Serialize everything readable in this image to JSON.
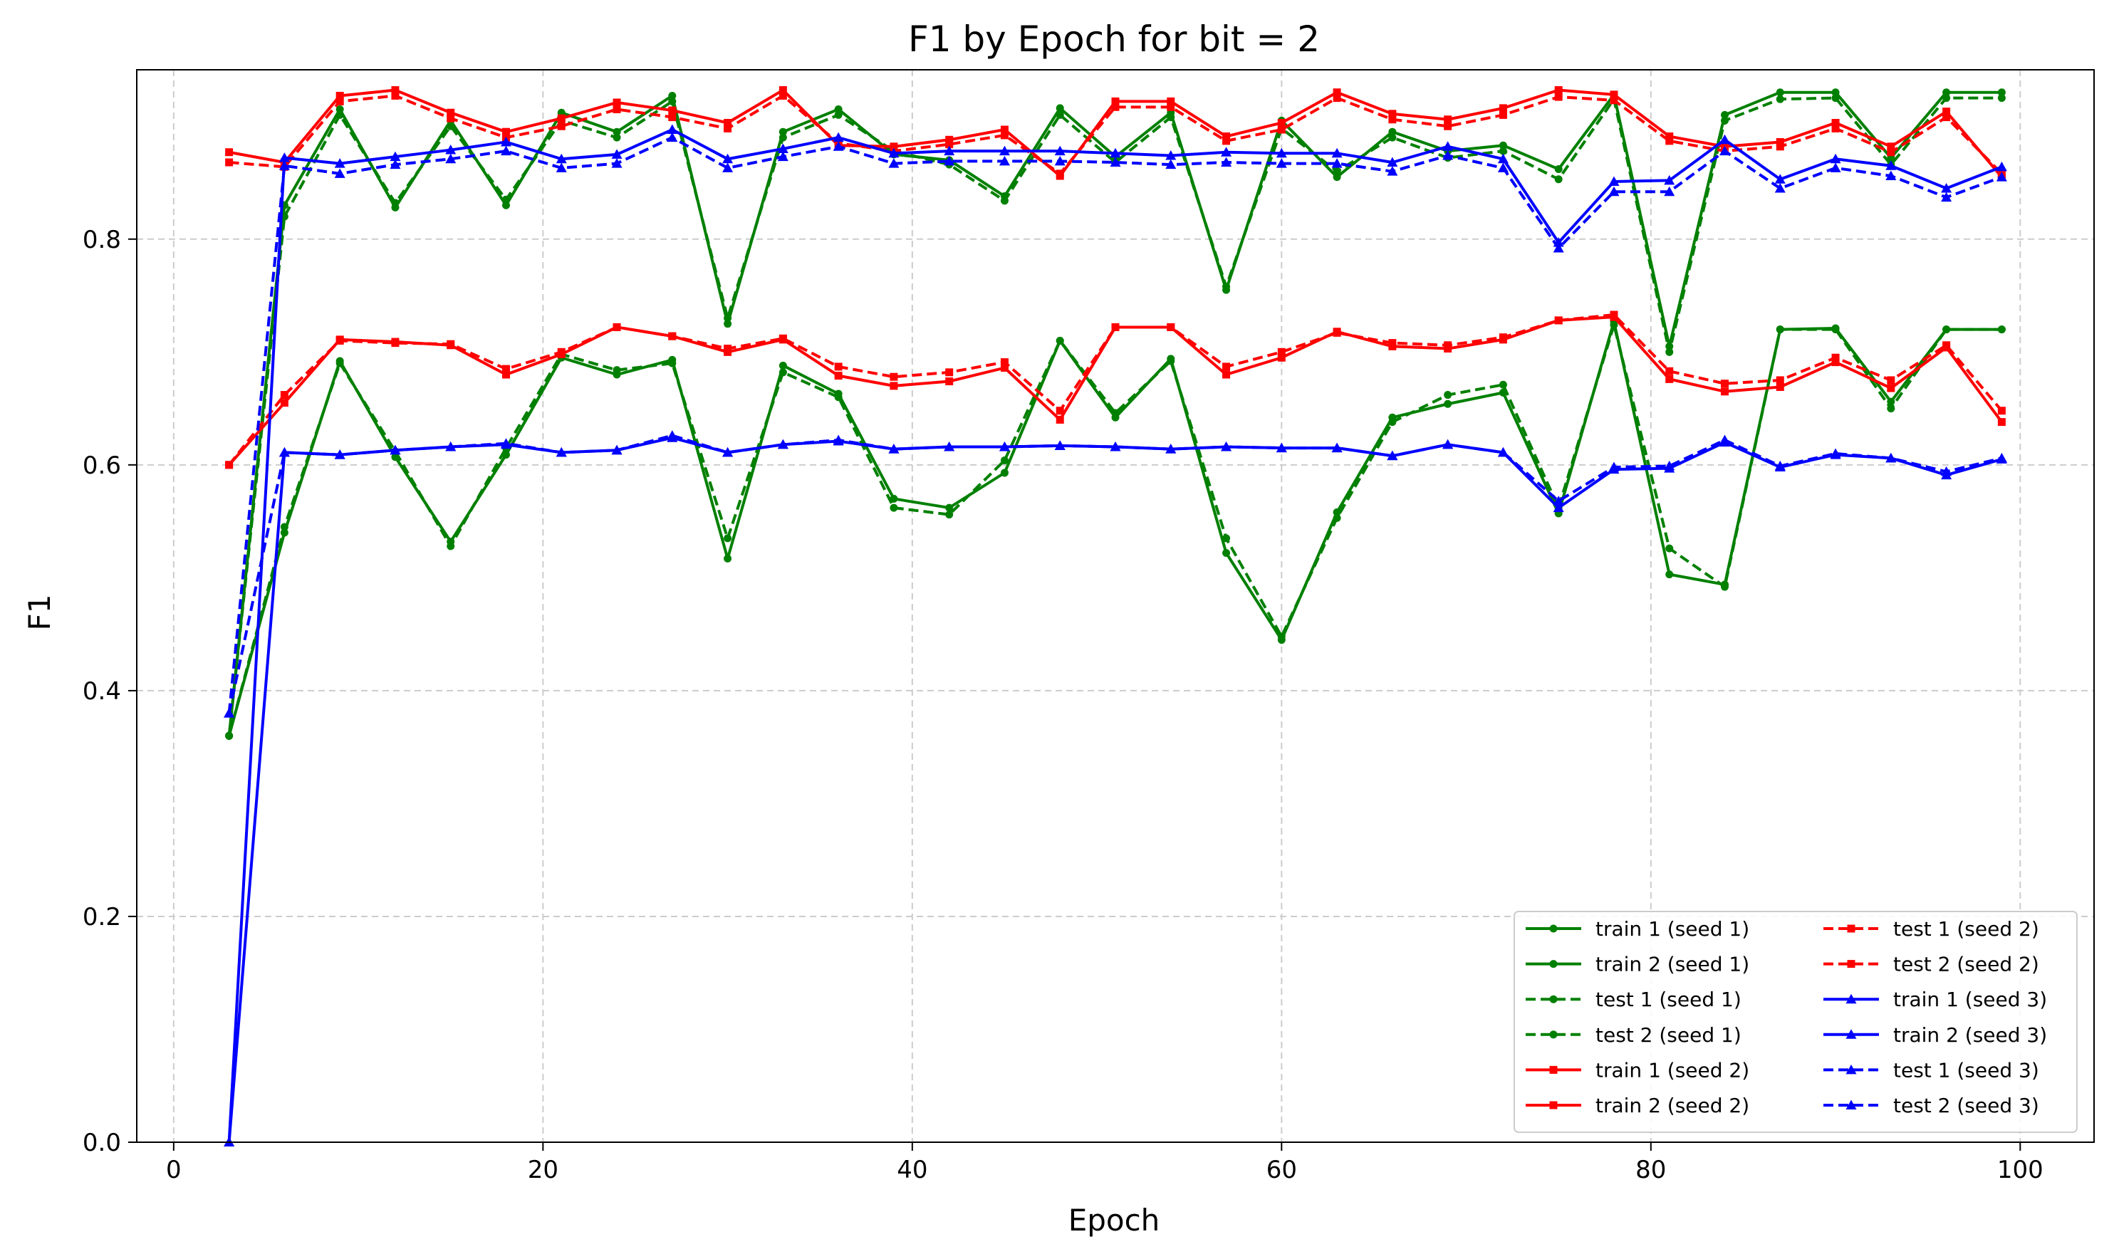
{
  "chart_data": {
    "type": "line",
    "title": "F1 by Epoch for bit = 2",
    "xlabel": "Epoch",
    "ylabel": "F1",
    "xlim": [
      -2,
      104
    ],
    "ylim": [
      0.0,
      0.95
    ],
    "x_ticks": [
      0,
      20,
      40,
      60,
      80,
      100
    ],
    "y_ticks": [
      0.0,
      0.2,
      0.4,
      0.6,
      0.8
    ],
    "x_tick_labels": [
      "0",
      "20",
      "40",
      "60",
      "80",
      "100"
    ],
    "y_tick_labels": [
      "0.0",
      "0.2",
      "0.4",
      "0.6",
      "0.8"
    ],
    "grid": true,
    "legend_position": "bottom-right",
    "legend_columns": 2,
    "x": [
      3,
      6,
      9,
      12,
      15,
      18,
      21,
      24,
      27,
      30,
      33,
      36,
      39,
      42,
      45,
      48,
      51,
      54,
      57,
      60,
      63,
      66,
      69,
      72,
      75,
      78,
      81,
      84,
      87,
      90,
      93,
      96,
      99
    ],
    "series": [
      {
        "name": "train 1 (seed 1)",
        "color": "#008000",
        "dash": "solid",
        "marker": "circle",
        "values": [
          0.36,
          0.83,
          0.915,
          0.828,
          0.905,
          0.83,
          0.912,
          0.895,
          0.927,
          0.725,
          0.895,
          0.915,
          0.875,
          0.87,
          0.838,
          0.916,
          0.873,
          0.912,
          0.755,
          0.905,
          0.855,
          0.895,
          0.878,
          0.883,
          0.862,
          0.928,
          0.705,
          0.91,
          0.93,
          0.93,
          0.872,
          0.93,
          0.93
        ]
      },
      {
        "name": "train 2 (seed 1)",
        "color": "#008000",
        "dash": "solid",
        "marker": "circle",
        "values": [
          0.36,
          0.54,
          0.692,
          0.607,
          0.532,
          0.609,
          0.695,
          0.68,
          0.693,
          0.517,
          0.688,
          0.663,
          0.57,
          0.562,
          0.593,
          0.71,
          0.642,
          0.694,
          0.522,
          0.445,
          0.558,
          0.642,
          0.654,
          0.664,
          0.557,
          0.727,
          0.503,
          0.494,
          0.72,
          0.721,
          0.656,
          0.72,
          0.72
        ]
      },
      {
        "name": "test 1 (seed 1)",
        "color": "#008000",
        "dash": "dashed",
        "marker": "circle",
        "values": [
          0.36,
          0.82,
          0.91,
          0.832,
          0.9,
          0.835,
          0.905,
          0.89,
          0.922,
          0.73,
          0.89,
          0.91,
          0.878,
          0.866,
          0.834,
          0.91,
          0.868,
          0.908,
          0.758,
          0.898,
          0.86,
          0.89,
          0.872,
          0.878,
          0.853,
          0.924,
          0.7,
          0.905,
          0.924,
          0.925,
          0.866,
          0.925,
          0.925
        ]
      },
      {
        "name": "test 2 (seed 1)",
        "color": "#008000",
        "dash": "dashed",
        "marker": "circle",
        "values": [
          0.36,
          0.545,
          0.69,
          0.612,
          0.528,
          0.615,
          0.698,
          0.684,
          0.69,
          0.535,
          0.682,
          0.66,
          0.562,
          0.556,
          0.604,
          0.71,
          0.646,
          0.692,
          0.535,
          0.448,
          0.553,
          0.638,
          0.662,
          0.671,
          0.562,
          0.724,
          0.526,
          0.492,
          0.72,
          0.72,
          0.65,
          0.72,
          0.72
        ]
      },
      {
        "name": "train 1 (seed 2)",
        "color": "#ff0000",
        "dash": "solid",
        "marker": "square",
        "values": [
          0.877,
          0.868,
          0.927,
          0.932,
          0.912,
          0.895,
          0.907,
          0.921,
          0.914,
          0.903,
          0.932,
          0.883,
          0.882,
          0.888,
          0.897,
          0.856,
          0.922,
          0.922,
          0.891,
          0.903,
          0.93,
          0.911,
          0.906,
          0.916,
          0.932,
          0.928,
          0.891,
          0.882,
          0.886,
          0.903,
          0.882,
          0.913,
          0.855
        ]
      },
      {
        "name": "train 2 (seed 2)",
        "color": "#ff0000",
        "dash": "solid",
        "marker": "square",
        "values": [
          0.6,
          0.655,
          0.711,
          0.709,
          0.706,
          0.68,
          0.698,
          0.722,
          0.714,
          0.7,
          0.711,
          0.679,
          0.67,
          0.674,
          0.686,
          0.64,
          0.722,
          0.722,
          0.68,
          0.695,
          0.718,
          0.705,
          0.703,
          0.711,
          0.728,
          0.731,
          0.676,
          0.665,
          0.669,
          0.691,
          0.668,
          0.704,
          0.638
        ]
      },
      {
        "name": "test 1 (seed 2)",
        "color": "#ff0000",
        "dash": "dashed",
        "marker": "square",
        "values": [
          0.868,
          0.864,
          0.922,
          0.927,
          0.907,
          0.89,
          0.9,
          0.915,
          0.908,
          0.898,
          0.927,
          0.885,
          0.878,
          0.884,
          0.892,
          0.858,
          0.917,
          0.917,
          0.887,
          0.897,
          0.925,
          0.906,
          0.9,
          0.91,
          0.926,
          0.923,
          0.887,
          0.878,
          0.882,
          0.898,
          0.877,
          0.908,
          0.858
        ]
      },
      {
        "name": "test 2 (seed 2)",
        "color": "#ff0000",
        "dash": "dashed",
        "marker": "square",
        "values": [
          0.6,
          0.662,
          0.71,
          0.708,
          0.707,
          0.685,
          0.7,
          0.722,
          0.714,
          0.703,
          0.712,
          0.687,
          0.678,
          0.682,
          0.691,
          0.648,
          0.722,
          0.722,
          0.687,
          0.7,
          0.717,
          0.708,
          0.706,
          0.713,
          0.728,
          0.733,
          0.683,
          0.672,
          0.675,
          0.695,
          0.675,
          0.706,
          0.648
        ]
      },
      {
        "name": "train 1 (seed 3)",
        "color": "#0000ff",
        "dash": "solid",
        "marker": "triangle",
        "values": [
          0.0,
          0.872,
          0.867,
          0.873,
          0.879,
          0.886,
          0.871,
          0.875,
          0.897,
          0.871,
          0.88,
          0.89,
          0.876,
          0.878,
          0.878,
          0.878,
          0.876,
          0.874,
          0.877,
          0.876,
          0.876,
          0.868,
          0.882,
          0.871,
          0.797,
          0.851,
          0.852,
          0.888,
          0.853,
          0.871,
          0.865,
          0.845,
          0.864
        ]
      },
      {
        "name": "train 2 (seed 3)",
        "color": "#0000ff",
        "dash": "solid",
        "marker": "triangle",
        "values": [
          0.0,
          0.611,
          0.609,
          0.613,
          0.616,
          0.618,
          0.611,
          0.613,
          0.624,
          0.611,
          0.618,
          0.621,
          0.614,
          0.616,
          0.616,
          0.617,
          0.616,
          0.614,
          0.616,
          0.615,
          0.615,
          0.608,
          0.618,
          0.611,
          0.562,
          0.596,
          0.597,
          0.62,
          0.598,
          0.609,
          0.606,
          0.591,
          0.605
        ]
      },
      {
        "name": "test 1 (seed 3)",
        "color": "#0000ff",
        "dash": "dashed",
        "marker": "triangle",
        "values": [
          0.38,
          0.865,
          0.858,
          0.866,
          0.871,
          0.878,
          0.863,
          0.867,
          0.89,
          0.863,
          0.873,
          0.882,
          0.867,
          0.869,
          0.869,
          0.869,
          0.868,
          0.866,
          0.868,
          0.867,
          0.867,
          0.86,
          0.874,
          0.863,
          0.792,
          0.842,
          0.842,
          0.878,
          0.845,
          0.863,
          0.856,
          0.837,
          0.855
        ]
      },
      {
        "name": "test 2 (seed 3)",
        "color": "#0000ff",
        "dash": "dashed",
        "marker": "triangle",
        "values": [
          0.38,
          0.611,
          0.609,
          0.613,
          0.616,
          0.619,
          0.611,
          0.613,
          0.626,
          0.611,
          0.618,
          0.622,
          0.614,
          0.616,
          0.616,
          0.617,
          0.616,
          0.614,
          0.616,
          0.615,
          0.615,
          0.608,
          0.618,
          0.611,
          0.568,
          0.598,
          0.599,
          0.622,
          0.599,
          0.61,
          0.606,
          0.594,
          0.606
        ]
      }
    ]
  }
}
